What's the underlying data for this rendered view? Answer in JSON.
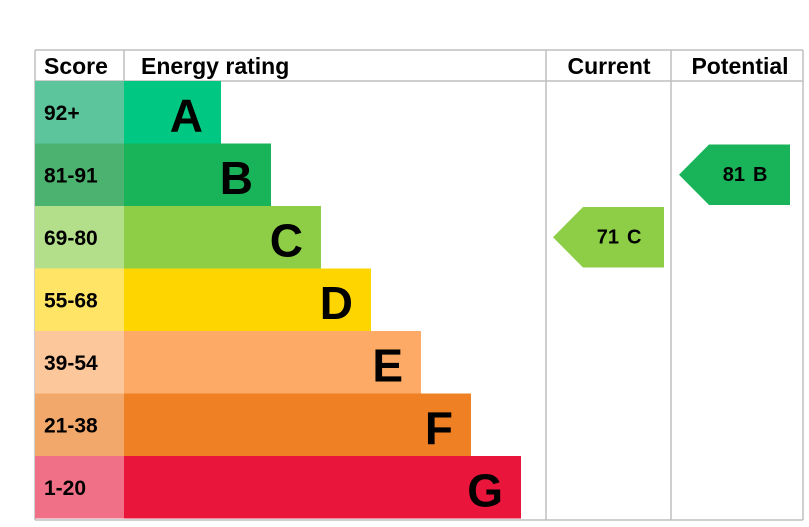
{
  "chart_data": {
    "type": "epc",
    "headers": {
      "score": "Score",
      "rating": "Energy rating",
      "current": "Current",
      "potential": "Potential"
    },
    "bands": [
      {
        "score": "92+",
        "letter": "A",
        "color": "#00c781",
        "score_color": "#5cc59c"
      },
      {
        "score": "81-91",
        "letter": "B",
        "color": "#19b459",
        "score_color": "#4cb26f"
      },
      {
        "score": "69-80",
        "letter": "C",
        "color": "#8dce46",
        "score_color": "#b4df8a"
      },
      {
        "score": "55-68",
        "letter": "D",
        "color": "#ffd500",
        "score_color": "#ffe466"
      },
      {
        "score": "39-54",
        "letter": "E",
        "color": "#fcaa65",
        "score_color": "#fdc79c"
      },
      {
        "score": "21-38",
        "letter": "F",
        "color": "#ef8023",
        "score_color": "#f3a86b"
      },
      {
        "score": "1-20",
        "letter": "G",
        "color": "#e9153b",
        "score_color": "#f07087"
      }
    ],
    "current": {
      "value": 71,
      "letter": "C"
    },
    "potential": {
      "value": 81,
      "letter": "B"
    }
  }
}
